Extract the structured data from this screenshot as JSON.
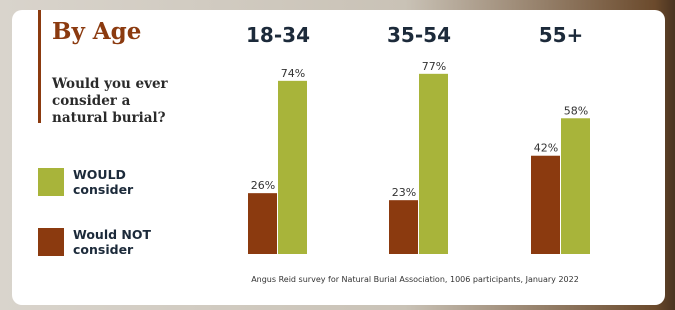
{
  "chart_data": {
    "type": "bar",
    "title": "By Age",
    "subtitle": "Would you ever consider a natural burial?",
    "categories": [
      "18-34",
      "35-54",
      "55+"
    ],
    "series": [
      {
        "name": "WOULD consider",
        "color": "#a8b43a",
        "values": [
          74,
          77,
          58
        ],
        "value_labels": [
          "74%",
          "77%",
          "58%"
        ]
      },
      {
        "name": "Would NOT consider",
        "color": "#8b3a0f",
        "values": [
          26,
          23,
          42
        ],
        "value_labels": [
          "26%",
          "23%",
          "42%"
        ]
      }
    ],
    "ylim": [
      0,
      100
    ],
    "source": "Angus Reid survey for Natural Burial Association, 1006 participants, January 2022"
  }
}
